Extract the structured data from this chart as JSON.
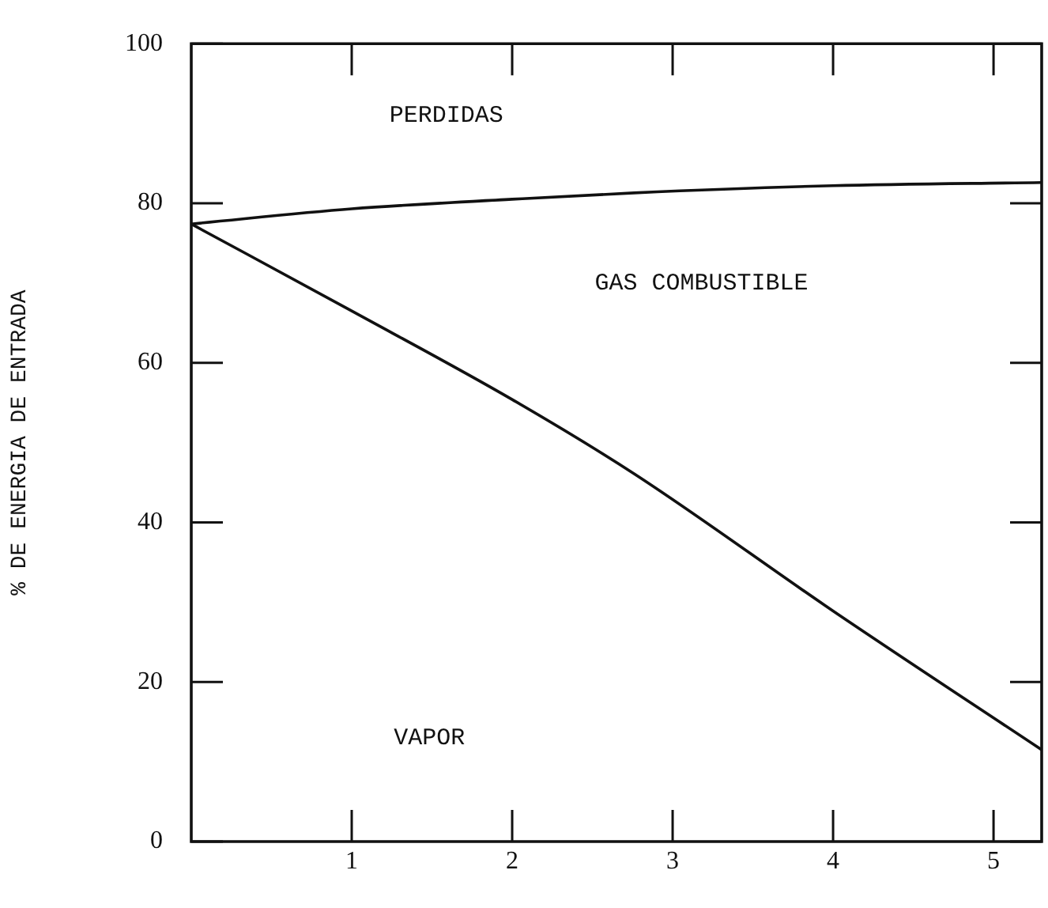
{
  "chart_data": {
    "type": "line",
    "ylabel": "% DE ENERGIA DE ENTRADA",
    "xlim": [
      0,
      5.3
    ],
    "xticks": [
      1,
      2,
      3,
      4,
      5
    ],
    "ylim": [
      0,
      100
    ],
    "yticks": [
      0,
      20,
      40,
      60,
      80,
      100
    ],
    "grid": false,
    "legend": false,
    "marker": "none",
    "line_style": "solid",
    "series": [
      {
        "color": "#111111",
        "x": [
          0,
          1,
          2,
          2.76,
          4,
          5.3
        ],
        "values": [
          77.4,
          79.3,
          80.5,
          81.3,
          82.2,
          82.6
        ]
      },
      {
        "color": "#111111",
        "x": [
          0,
          1,
          2,
          2.76,
          4,
          5.3
        ],
        "values": [
          77.4,
          66.5,
          55.4,
          46.1,
          28.9,
          11.5
        ]
      }
    ],
    "annotations": [
      "PERDIDAS",
      "GAS COMBUSTIBLE",
      "VAPOR"
    ]
  }
}
